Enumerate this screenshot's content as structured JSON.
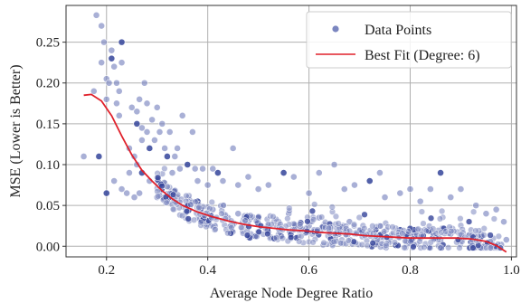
{
  "chart_data": {
    "type": "scatter",
    "xlabel": "Average Node Degree Ratio",
    "ylabel": "MSE (Lower is Better)",
    "xlim": [
      0.12,
      1.01
    ],
    "ylim": [
      -0.013,
      0.295
    ],
    "x_ticks": [
      0.2,
      0.4,
      0.6,
      0.8,
      1.0
    ],
    "x_tick_labels": [
      "0.2",
      "0.4",
      "0.6",
      "0.8",
      "1.0"
    ],
    "y_ticks": [
      0.0,
      0.05,
      0.1,
      0.15,
      0.2,
      0.25
    ],
    "y_tick_labels": [
      "0.00",
      "0.05",
      "0.10",
      "0.15",
      "0.20",
      "0.25"
    ],
    "grid": true,
    "legend": {
      "position": "top-right",
      "entries": [
        {
          "label": "Data Points",
          "kind": "marker",
          "color": "#7b86c0"
        },
        {
          "label": "Best Fit (Degree: 6)",
          "kind": "line",
          "color": "#e0202a"
        }
      ]
    },
    "colors": {
      "points": "#7b86c0",
      "points_dark": "#34449a",
      "fit_line": "#e0202a"
    },
    "series": [
      {
        "name": "Data Points",
        "kind": "scatter",
        "points": [
          [
            0.155,
            0.11
          ],
          [
            0.175,
            0.19
          ],
          [
            0.18,
            0.283
          ],
          [
            0.185,
            0.11
          ],
          [
            0.19,
            0.27
          ],
          [
            0.195,
            0.25
          ],
          [
            0.19,
            0.225
          ],
          [
            0.2,
            0.205
          ],
          [
            0.2,
            0.18
          ],
          [
            0.205,
            0.2
          ],
          [
            0.21,
            0.23
          ],
          [
            0.21,
            0.24
          ],
          [
            0.215,
            0.22
          ],
          [
            0.22,
            0.175
          ],
          [
            0.22,
            0.2
          ],
          [
            0.225,
            0.19
          ],
          [
            0.225,
            0.16
          ],
          [
            0.23,
            0.25
          ],
          [
            0.23,
            0.225
          ],
          [
            0.24,
            0.065
          ],
          [
            0.245,
            0.12
          ],
          [
            0.25,
            0.17
          ],
          [
            0.255,
            0.11
          ],
          [
            0.26,
            0.165
          ],
          [
            0.26,
            0.15
          ],
          [
            0.265,
            0.18
          ],
          [
            0.27,
            0.13
          ],
          [
            0.27,
            0.145
          ],
          [
            0.275,
            0.2
          ],
          [
            0.28,
            0.14
          ],
          [
            0.28,
            0.175
          ],
          [
            0.285,
            0.12
          ],
          [
            0.29,
            0.155
          ],
          [
            0.295,
            0.13
          ],
          [
            0.3,
            0.17
          ],
          [
            0.305,
            0.14
          ],
          [
            0.31,
            0.15
          ],
          [
            0.315,
            0.12
          ],
          [
            0.32,
            0.11
          ],
          [
            0.325,
            0.14
          ],
          [
            0.33,
            0.09
          ],
          [
            0.335,
            0.11
          ],
          [
            0.34,
            0.12
          ],
          [
            0.345,
            0.095
          ],
          [
            0.35,
            0.16
          ],
          [
            0.36,
            0.1
          ],
          [
            0.37,
            0.14
          ],
          [
            0.375,
            0.095
          ],
          [
            0.38,
            0.08
          ],
          [
            0.39,
            0.095
          ],
          [
            0.4,
            0.075
          ],
          [
            0.41,
            0.095
          ],
          [
            0.42,
            0.09
          ],
          [
            0.43,
            0.08
          ],
          [
            0.45,
            0.12
          ],
          [
            0.46,
            0.075
          ],
          [
            0.48,
            0.085
          ],
          [
            0.5,
            0.07
          ],
          [
            0.52,
            0.075
          ],
          [
            0.55,
            0.09
          ],
          [
            0.57,
            0.085
          ],
          [
            0.6,
            0.065
          ],
          [
            0.62,
            0.09
          ],
          [
            0.65,
            0.1
          ],
          [
            0.67,
            0.07
          ],
          [
            0.69,
            0.075
          ],
          [
            0.72,
            0.08
          ],
          [
            0.74,
            0.09
          ],
          [
            0.75,
            0.06
          ],
          [
            0.78,
            0.065
          ],
          [
            0.8,
            0.07
          ],
          [
            0.82,
            0.055
          ],
          [
            0.84,
            0.07
          ],
          [
            0.86,
            0.09
          ],
          [
            0.88,
            0.06
          ],
          [
            0.9,
            0.07
          ],
          [
            0.93,
            0.05
          ],
          [
            0.95,
            0.04
          ],
          [
            0.97,
            0.045
          ],
          [
            0.985,
            0.03
          ],
          [
            0.2,
            0.065
          ],
          [
            0.215,
            0.08
          ],
          [
            0.23,
            0.07
          ],
          [
            0.245,
            0.09
          ],
          [
            0.255,
            0.06
          ],
          [
            0.265,
            0.065
          ],
          [
            0.26,
            0.1
          ],
          [
            0.27,
            0.09
          ],
          [
            0.285,
            0.08
          ],
          [
            0.3,
            0.06
          ],
          [
            0.31,
            0.075
          ],
          [
            0.325,
            0.055
          ],
          [
            0.34,
            0.06
          ],
          [
            0.36,
            0.05
          ],
          [
            0.38,
            0.055
          ],
          [
            0.395,
            0.04
          ],
          [
            0.41,
            0.045
          ],
          [
            0.43,
            0.05
          ],
          [
            0.44,
            0.035
          ],
          [
            0.46,
            0.04
          ],
          [
            0.48,
            0.03
          ],
          [
            0.5,
            0.035
          ],
          [
            0.52,
            0.025
          ],
          [
            0.54,
            0.03
          ],
          [
            0.56,
            0.04
          ],
          [
            0.58,
            0.02
          ],
          [
            0.6,
            0.025
          ],
          [
            0.62,
            0.035
          ],
          [
            0.64,
            0.02
          ],
          [
            0.66,
            0.015
          ],
          [
            0.68,
            0.03
          ],
          [
            0.7,
            0.02
          ],
          [
            0.72,
            0.015
          ],
          [
            0.74,
            0.025
          ],
          [
            0.76,
            0.01
          ],
          [
            0.78,
            0.02
          ],
          [
            0.8,
            0.015
          ],
          [
            0.82,
            0.01
          ],
          [
            0.84,
            0.02
          ],
          [
            0.86,
            0.008
          ],
          [
            0.88,
            0.015
          ],
          [
            0.9,
            0.01
          ],
          [
            0.92,
            0.005
          ],
          [
            0.94,
            0.015
          ],
          [
            0.96,
            0.005
          ],
          [
            0.98,
            0.002
          ],
          [
            0.99,
            0.008
          ]
        ]
      },
      {
        "name": "Best Fit (Degree: 6)",
        "kind": "line",
        "points": [
          [
            0.155,
            0.185
          ],
          [
            0.17,
            0.186
          ],
          [
            0.19,
            0.178
          ],
          [
            0.21,
            0.16
          ],
          [
            0.23,
            0.135
          ],
          [
            0.25,
            0.112
          ],
          [
            0.27,
            0.093
          ],
          [
            0.29,
            0.08
          ],
          [
            0.31,
            0.068
          ],
          [
            0.33,
            0.058
          ],
          [
            0.35,
            0.05
          ],
          [
            0.38,
            0.042
          ],
          [
            0.41,
            0.036
          ],
          [
            0.44,
            0.031
          ],
          [
            0.47,
            0.027
          ],
          [
            0.5,
            0.024
          ],
          [
            0.53,
            0.022
          ],
          [
            0.56,
            0.02
          ],
          [
            0.59,
            0.019
          ],
          [
            0.62,
            0.017
          ],
          [
            0.65,
            0.016
          ],
          [
            0.68,
            0.015
          ],
          [
            0.71,
            0.013
          ],
          [
            0.74,
            0.012
          ],
          [
            0.77,
            0.011
          ],
          [
            0.8,
            0.01
          ],
          [
            0.83,
            0.01
          ],
          [
            0.86,
            0.01
          ],
          [
            0.89,
            0.01
          ],
          [
            0.92,
            0.009
          ],
          [
            0.95,
            0.006
          ],
          [
            0.97,
            0.001
          ],
          [
            0.99,
            -0.007
          ]
        ]
      }
    ]
  }
}
